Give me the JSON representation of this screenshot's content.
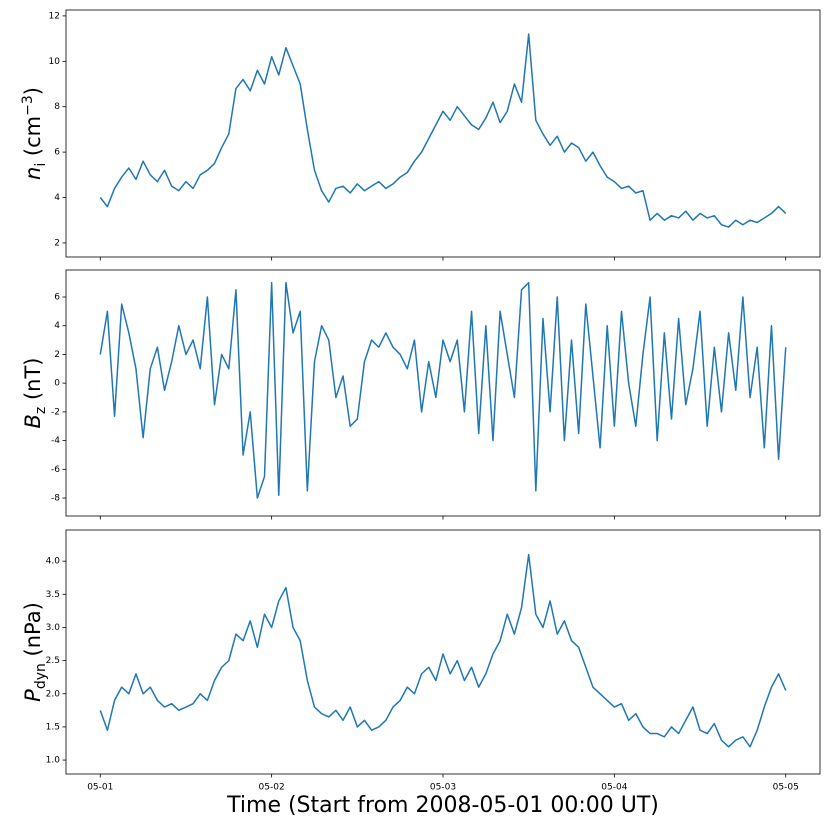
{
  "chart_data": [
    {
      "type": "line",
      "color": "#1f77b4",
      "ylabel": {
        "base": "n",
        "sub": "i",
        "rest": " (cm",
        "sup": "−3",
        "end": ")"
      },
      "x": [
        0,
        1,
        2,
        3,
        4,
        5,
        6,
        7,
        8,
        9,
        10,
        11,
        12,
        13,
        14,
        15,
        16,
        17,
        18,
        19,
        20,
        21,
        22,
        23,
        24,
        25,
        26,
        27,
        28,
        29,
        30,
        31,
        32,
        33,
        34,
        35,
        36,
        37,
        38,
        39,
        40,
        41,
        42,
        43,
        44,
        45,
        46,
        47,
        48,
        49,
        50,
        51,
        52,
        53,
        54,
        55,
        56,
        57,
        58,
        59,
        60,
        61,
        62,
        63,
        64,
        65,
        66,
        67,
        68,
        69,
        70,
        71,
        72,
        73,
        74,
        75,
        76,
        77,
        78,
        79,
        80,
        81,
        82,
        83,
        84,
        85,
        86,
        87,
        88,
        89,
        90,
        91,
        92,
        93,
        94,
        95,
        96
      ],
      "values": [
        4.0,
        3.6,
        4.4,
        4.9,
        5.3,
        4.8,
        5.6,
        5.0,
        4.7,
        5.2,
        4.5,
        4.3,
        4.7,
        4.4,
        5.0,
        5.2,
        5.5,
        6.2,
        6.8,
        8.8,
        9.2,
        8.7,
        9.6,
        9.0,
        10.2,
        9.4,
        10.6,
        9.8,
        9.0,
        7.0,
        5.2,
        4.3,
        3.8,
        4.4,
        4.5,
        4.2,
        4.6,
        4.3,
        4.5,
        4.7,
        4.4,
        4.6,
        4.9,
        5.1,
        5.6,
        6.0,
        6.6,
        7.2,
        7.8,
        7.4,
        8.0,
        7.6,
        7.2,
        7.0,
        7.5,
        8.2,
        7.3,
        7.8,
        9.0,
        8.2,
        11.2,
        7.4,
        6.8,
        6.3,
        6.7,
        6.0,
        6.4,
        6.2,
        5.6,
        6.0,
        5.4,
        4.9,
        4.7,
        4.4,
        4.5,
        4.2,
        4.3,
        3.0,
        3.3,
        3.0,
        3.2,
        3.1,
        3.4,
        3.0,
        3.3,
        3.1,
        3.2,
        2.8,
        2.7,
        3.0,
        2.8,
        3.0,
        2.9,
        3.1,
        3.3,
        3.6,
        3.3
      ],
      "xlim": [
        -4.8,
        100.8
      ],
      "xticks": [
        0,
        24,
        48,
        72,
        96
      ],
      "ylim": [
        1.38,
        12.26
      ],
      "yticks": [
        2,
        4,
        6,
        8,
        10,
        12
      ]
    },
    {
      "type": "line",
      "color": "#1f77b4",
      "ylabel": {
        "base": "B",
        "sub": "z",
        "rest": " (nT)"
      },
      "x": [
        0,
        1,
        2,
        3,
        4,
        5,
        6,
        7,
        8,
        9,
        10,
        11,
        12,
        13,
        14,
        15,
        16,
        17,
        18,
        19,
        20,
        21,
        22,
        23,
        24,
        25,
        26,
        27,
        28,
        29,
        30,
        31,
        32,
        33,
        34,
        35,
        36,
        37,
        38,
        39,
        40,
        41,
        42,
        43,
        44,
        45,
        46,
        47,
        48,
        49,
        50,
        51,
        52,
        53,
        54,
        55,
        56,
        57,
        58,
        59,
        60,
        61,
        62,
        63,
        64,
        65,
        66,
        67,
        68,
        69,
        70,
        71,
        72,
        73,
        74,
        75,
        76,
        77,
        78,
        79,
        80,
        81,
        82,
        83,
        84,
        85,
        86,
        87,
        88,
        89,
        90,
        91,
        92,
        93,
        94,
        95,
        96
      ],
      "values": [
        2.0,
        5.0,
        -2.3,
        5.5,
        3.5,
        1.0,
        -3.8,
        1.0,
        2.5,
        -0.5,
        1.5,
        4.0,
        2.0,
        3.0,
        1.0,
        6.0,
        -1.5,
        2.0,
        1.0,
        6.5,
        -5.0,
        -2.0,
        -8.0,
        -6.5,
        7.0,
        -7.8,
        7.0,
        3.5,
        5.0,
        -7.5,
        1.5,
        4.0,
        3.0,
        -1.0,
        0.5,
        -3.0,
        -2.5,
        1.5,
        3.0,
        2.5,
        3.5,
        2.5,
        2.0,
        1.0,
        3.0,
        -2.0,
        1.5,
        -1.0,
        3.0,
        1.5,
        3.0,
        -2.0,
        5.0,
        -3.5,
        4.0,
        -4.0,
        5.0,
        2.0,
        -1.0,
        6.5,
        7.0,
        -7.5,
        4.5,
        -2.0,
        6.0,
        -4.0,
        3.0,
        -3.5,
        5.5,
        0.5,
        -4.5,
        4.0,
        -3.0,
        5.0,
        0.0,
        -3.0,
        2.0,
        6.0,
        -4.0,
        3.5,
        -2.5,
        4.5,
        -1.5,
        1.0,
        5.0,
        -3.0,
        2.5,
        -2.0,
        3.5,
        -0.5,
        6.0,
        -1.0,
        2.5,
        -4.5,
        4.0,
        -5.3,
        2.5
      ],
      "xlim": [
        -4.8,
        100.8
      ],
      "xticks": [
        0,
        24,
        48,
        72,
        96
      ],
      "ylim": [
        -9.25,
        7.88
      ],
      "yticks": [
        -8,
        -6,
        -4,
        -2,
        0,
        2,
        4,
        6
      ]
    },
    {
      "type": "line",
      "color": "#1f77b4",
      "ylabel": {
        "base": "P",
        "sub": "dyn",
        "rest": " (nPa)"
      },
      "xlabel": "Time (Start from 2008-05-01 00:00 UT)",
      "x": [
        0,
        1,
        2,
        3,
        4,
        5,
        6,
        7,
        8,
        9,
        10,
        11,
        12,
        13,
        14,
        15,
        16,
        17,
        18,
        19,
        20,
        21,
        22,
        23,
        24,
        25,
        26,
        27,
        28,
        29,
        30,
        31,
        32,
        33,
        34,
        35,
        36,
        37,
        38,
        39,
        40,
        41,
        42,
        43,
        44,
        45,
        46,
        47,
        48,
        49,
        50,
        51,
        52,
        53,
        54,
        55,
        56,
        57,
        58,
        59,
        60,
        61,
        62,
        63,
        64,
        65,
        66,
        67,
        68,
        69,
        70,
        71,
        72,
        73,
        74,
        75,
        76,
        77,
        78,
        79,
        80,
        81,
        82,
        83,
        84,
        85,
        86,
        87,
        88,
        89,
        90,
        91,
        92,
        93,
        94,
        95,
        96
      ],
      "values": [
        1.75,
        1.45,
        1.9,
        2.1,
        2.0,
        2.3,
        2.0,
        2.1,
        1.9,
        1.8,
        1.85,
        1.75,
        1.8,
        1.85,
        2.0,
        1.9,
        2.2,
        2.4,
        2.5,
        2.9,
        2.8,
        3.1,
        2.7,
        3.2,
        3.0,
        3.4,
        3.6,
        3.0,
        2.8,
        2.2,
        1.8,
        1.7,
        1.65,
        1.75,
        1.6,
        1.8,
        1.5,
        1.6,
        1.45,
        1.5,
        1.6,
        1.8,
        1.9,
        2.1,
        2.0,
        2.3,
        2.4,
        2.2,
        2.6,
        2.3,
        2.5,
        2.2,
        2.4,
        2.1,
        2.3,
        2.6,
        2.8,
        3.2,
        2.9,
        3.3,
        4.1,
        3.2,
        3.0,
        3.4,
        2.9,
        3.1,
        2.8,
        2.7,
        2.4,
        2.1,
        2.0,
        1.9,
        1.8,
        1.85,
        1.6,
        1.7,
        1.5,
        1.4,
        1.4,
        1.35,
        1.5,
        1.4,
        1.6,
        1.8,
        1.45,
        1.4,
        1.55,
        1.3,
        1.2,
        1.3,
        1.35,
        1.2,
        1.45,
        1.8,
        2.1,
        2.3,
        2.05
      ],
      "xlim": [
        -4.8,
        100.8
      ],
      "xticks": [
        {
          "value": 0,
          "label": "05-01"
        },
        {
          "value": 24,
          "label": "05-02"
        },
        {
          "value": 48,
          "label": "05-03"
        },
        {
          "value": 72,
          "label": "05-04"
        },
        {
          "value": 96,
          "label": "05-05"
        }
      ],
      "ylim": [
        0.79,
        4.47
      ],
      "yticks": [
        {
          "value": 1.0,
          "label": "1.0"
        },
        {
          "value": 1.5,
          "label": "1.5"
        },
        {
          "value": 2.0,
          "label": "2.0"
        },
        {
          "value": 2.5,
          "label": "2.5"
        },
        {
          "value": 3.0,
          "label": "3.0"
        },
        {
          "value": 3.5,
          "label": "3.5"
        },
        {
          "value": 4.0,
          "label": "4.0"
        }
      ]
    }
  ]
}
